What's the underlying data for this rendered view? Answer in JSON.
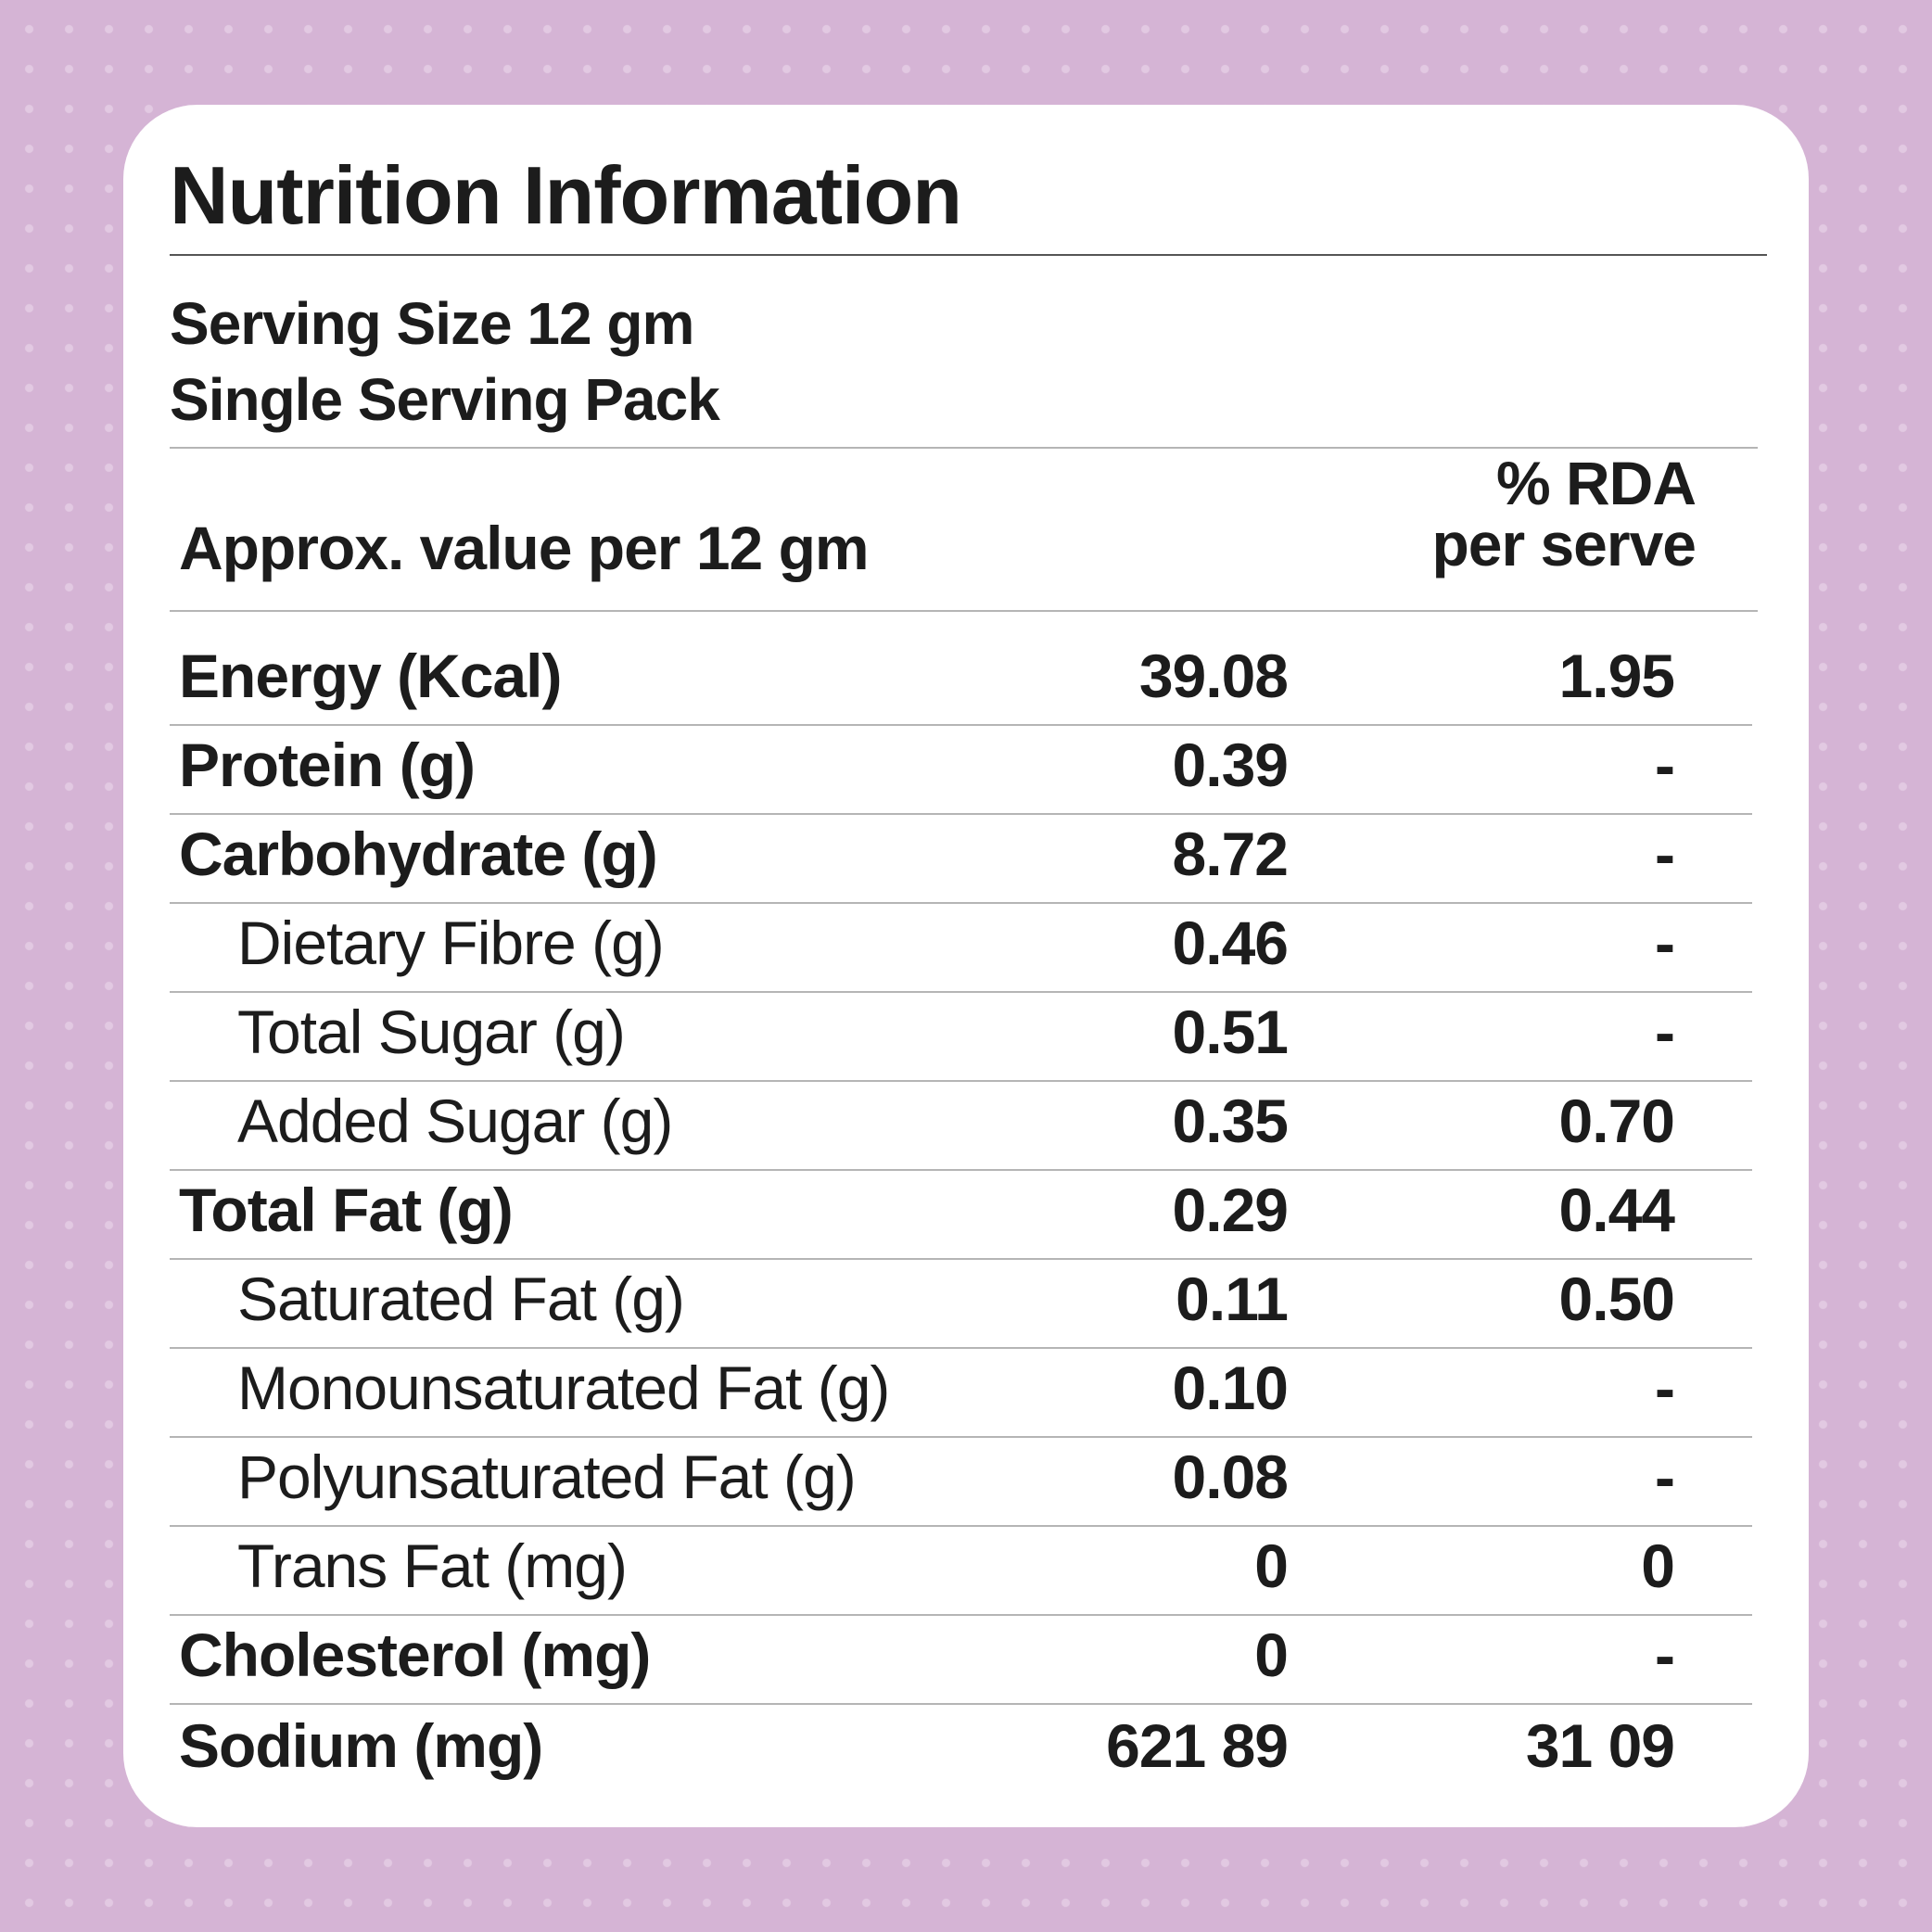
{
  "title": "Nutrition Information",
  "serving": {
    "size": "Serving Size 12 gm",
    "pack": "Single Serving Pack"
  },
  "header": {
    "left": "Approx. value per 12 gm",
    "right_line1": "% RDA",
    "right_line2": "per serve"
  },
  "rows": [
    {
      "label": "Energy (Kcal)",
      "value": "39.08",
      "rda": "1.95",
      "sub": false
    },
    {
      "label": "Protein (g)",
      "value": "0.39",
      "rda": "-",
      "sub": false
    },
    {
      "label": "Carbohydrate (g)",
      "value": "8.72",
      "rda": "-",
      "sub": false
    },
    {
      "label": "Dietary Fibre (g)",
      "value": "0.46",
      "rda": "-",
      "sub": true
    },
    {
      "label": "Total Sugar (g)",
      "value": "0.51",
      "rda": "-",
      "sub": true
    },
    {
      "label": "Added Sugar (g)",
      "value": "0.35",
      "rda": "0.70",
      "sub": true
    },
    {
      "label": "Total Fat (g)",
      "value": "0.29",
      "rda": "0.44",
      "sub": false
    },
    {
      "label": "Saturated Fat (g)",
      "value": "0.11",
      "rda": "0.50",
      "sub": true
    },
    {
      "label": "Monounsaturated Fat (g)",
      "value": "0.10",
      "rda": "-",
      "sub": true
    },
    {
      "label": "Polyunsaturated Fat (g)",
      "value": "0.08",
      "rda": "-",
      "sub": true
    },
    {
      "label": "Trans Fat (mg)",
      "value": "0",
      "rda": "0",
      "sub": true
    },
    {
      "label": "Cholesterol (mg)",
      "value": "0",
      "rda": "-",
      "sub": false
    },
    {
      "label": "Sodium (mg)",
      "value": "621 89",
      "rda": "31 09",
      "sub": false
    }
  ],
  "colors": {
    "background": "#d5b4d5",
    "card": "#ffffff",
    "text": "#1c1c1c"
  }
}
